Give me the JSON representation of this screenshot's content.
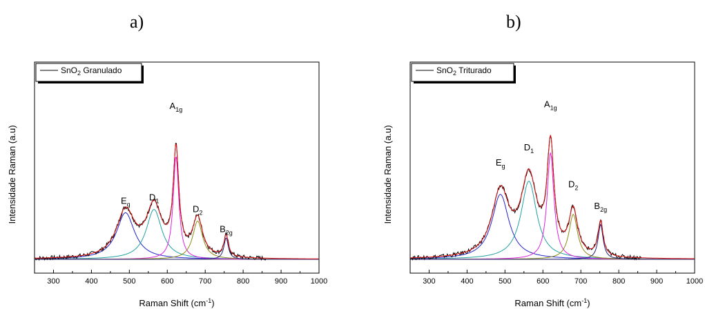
{
  "chart_data": [
    {
      "type": "line",
      "panel_label": "a)",
      "legend": {
        "prefix": "SnO",
        "sub": "2",
        "suffix": " Granulado"
      },
      "xlabel": {
        "main": "Raman Shift (cm",
        "sup": "-1",
        "close": ")"
      },
      "ylabel": "Intensidade Raman (a.u)",
      "xlim": [
        250,
        1000
      ],
      "xticks": [
        300,
        400,
        500,
        600,
        700,
        800,
        900,
        1000
      ],
      "peaks": [
        {
          "base": "E",
          "sub": "g",
          "x": 490,
          "y": 0.3
        },
        {
          "base": "D",
          "sub": "1",
          "x": 565,
          "y": 0.32
        },
        {
          "base": "A",
          "sub": "1g",
          "x": 623,
          "y": 0.87
        },
        {
          "base": "D",
          "sub": "2",
          "x": 680,
          "y": 0.25
        },
        {
          "base": "B",
          "sub": "2g",
          "x": 755,
          "y": 0.13
        }
      ],
      "components": [
        {
          "center": 490,
          "amp": 0.28,
          "width": 58,
          "color": "#2222cc"
        },
        {
          "center": 565,
          "amp": 0.3,
          "width": 50,
          "color": "#20a0a0"
        },
        {
          "center": 623,
          "amp": 0.62,
          "width": 18,
          "color": "#e020e0"
        },
        {
          "center": 680,
          "amp": 0.23,
          "width": 32,
          "color": "#8a8a10"
        },
        {
          "center": 755,
          "amp": 0.13,
          "width": 14,
          "color": "#20207a"
        }
      ],
      "colors": {
        "fit": "#e01010",
        "data": "#000000"
      }
    },
    {
      "type": "line",
      "panel_label": "b)",
      "legend": {
        "prefix": "SnO",
        "sub": "2",
        "suffix": " Triturado"
      },
      "xlabel": {
        "main": "Raman Shift (cm",
        "sup": "-1",
        "close": ")"
      },
      "ylabel": "Intensidade Raman (a.u)",
      "xlim": [
        250,
        1000
      ],
      "xticks": [
        300,
        400,
        500,
        600,
        700,
        800,
        900,
        1000
      ],
      "peaks": [
        {
          "base": "E",
          "sub": "g",
          "x": 488,
          "y": 0.53
        },
        {
          "base": "D",
          "sub": "1",
          "x": 563,
          "y": 0.62
        },
        {
          "base": "A",
          "sub": "1g",
          "x": 620,
          "y": 0.88
        },
        {
          "base": "D",
          "sub": "2",
          "x": 680,
          "y": 0.4
        },
        {
          "base": "B",
          "sub": "2g",
          "x": 752,
          "y": 0.27
        }
      ],
      "components": [
        {
          "center": 488,
          "amp": 0.39,
          "width": 55,
          "color": "#2222cc"
        },
        {
          "center": 563,
          "amp": 0.47,
          "width": 50,
          "color": "#20a0a0"
        },
        {
          "center": 620,
          "amp": 0.64,
          "width": 22,
          "color": "#e020e0"
        },
        {
          "center": 680,
          "amp": 0.27,
          "width": 28,
          "color": "#8a8a10"
        },
        {
          "center": 752,
          "amp": 0.21,
          "width": 16,
          "color": "#20207a"
        }
      ],
      "colors": {
        "fit": "#e01010",
        "data": "#000000"
      }
    }
  ]
}
